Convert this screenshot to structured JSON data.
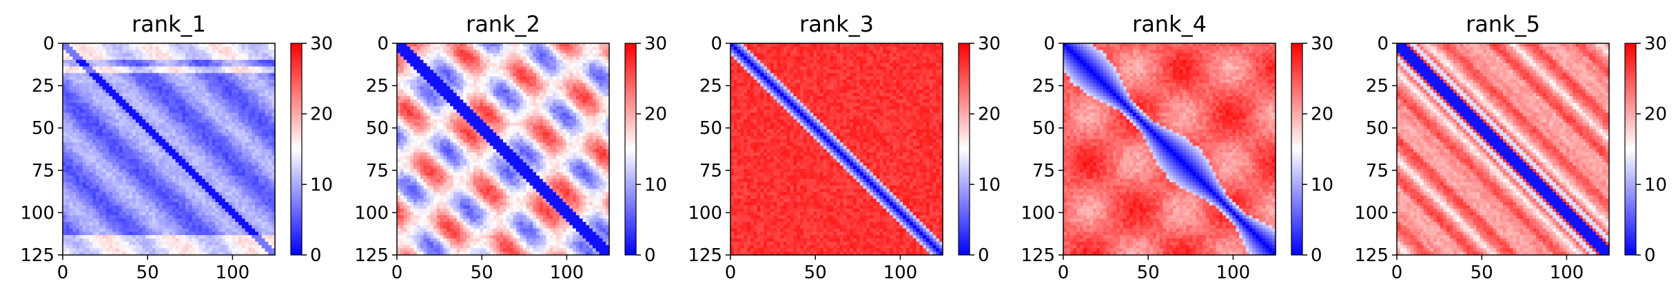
{
  "colormap": {
    "name": "bwr",
    "low": "#0000ff",
    "mid": "#ffffff",
    "high": "#ff0000"
  },
  "chart_data": [
    {
      "type": "heatmap",
      "title": "rank_1",
      "xlim": [
        0,
        125
      ],
      "ylim": [
        125,
        0
      ],
      "xticks": [
        0,
        50,
        100
      ],
      "yticks": [
        0,
        25,
        50,
        75,
        100,
        125
      ],
      "colorbar": {
        "range": [
          0,
          30
        ],
        "ticks": [
          0,
          10,
          20,
          30
        ]
      },
      "pattern": "mostly blue (low values), thin dark-blue diagonal, periodic mid-blue diagonal bands, light red near top/bottom rows"
    },
    {
      "type": "heatmap",
      "title": "rank_2",
      "xlim": [
        0,
        125
      ],
      "ylim": [
        125,
        0
      ],
      "xticks": [
        0,
        50,
        100
      ],
      "yticks": [
        0,
        25,
        50,
        75,
        100,
        125
      ],
      "colorbar": {
        "range": [
          0,
          30
        ],
        "ticks": [
          0,
          10,
          20,
          30
        ]
      },
      "pattern": "dark-blue diagonal with alternating blue and red periodic blobs parallel to diagonal"
    },
    {
      "type": "heatmap",
      "title": "rank_3",
      "xlim": [
        0,
        125
      ],
      "ylim": [
        125,
        0
      ],
      "xticks": [
        0,
        50,
        100
      ],
      "yticks": [
        0,
        25,
        50,
        75,
        100,
        125
      ],
      "colorbar": {
        "range": [
          0,
          30
        ],
        "ticks": [
          0,
          10,
          20,
          30
        ]
      },
      "pattern": "mostly red (high values), narrow blue diagonal band"
    },
    {
      "type": "heatmap",
      "title": "rank_4",
      "xlim": [
        0,
        125
      ],
      "ylim": [
        125,
        0
      ],
      "xticks": [
        0,
        50,
        100
      ],
      "yticks": [
        0,
        25,
        50,
        75,
        100,
        125
      ],
      "colorbar": {
        "range": [
          0,
          30
        ],
        "ticks": [
          0,
          10,
          20,
          30
        ]
      },
      "pattern": "mostly red, wide irregular blue diagonal band with lighter off-diagonal blocks"
    },
    {
      "type": "heatmap",
      "title": "rank_5",
      "xlim": [
        0,
        125
      ],
      "ylim": [
        125,
        0
      ],
      "xticks": [
        0,
        50,
        100
      ],
      "yticks": [
        0,
        25,
        50,
        75,
        100,
        125
      ],
      "colorbar": {
        "range": [
          0,
          30
        ],
        "ticks": [
          0,
          10,
          20,
          30
        ]
      },
      "pattern": "red background, blue diagonal with light parallel stripes"
    }
  ]
}
